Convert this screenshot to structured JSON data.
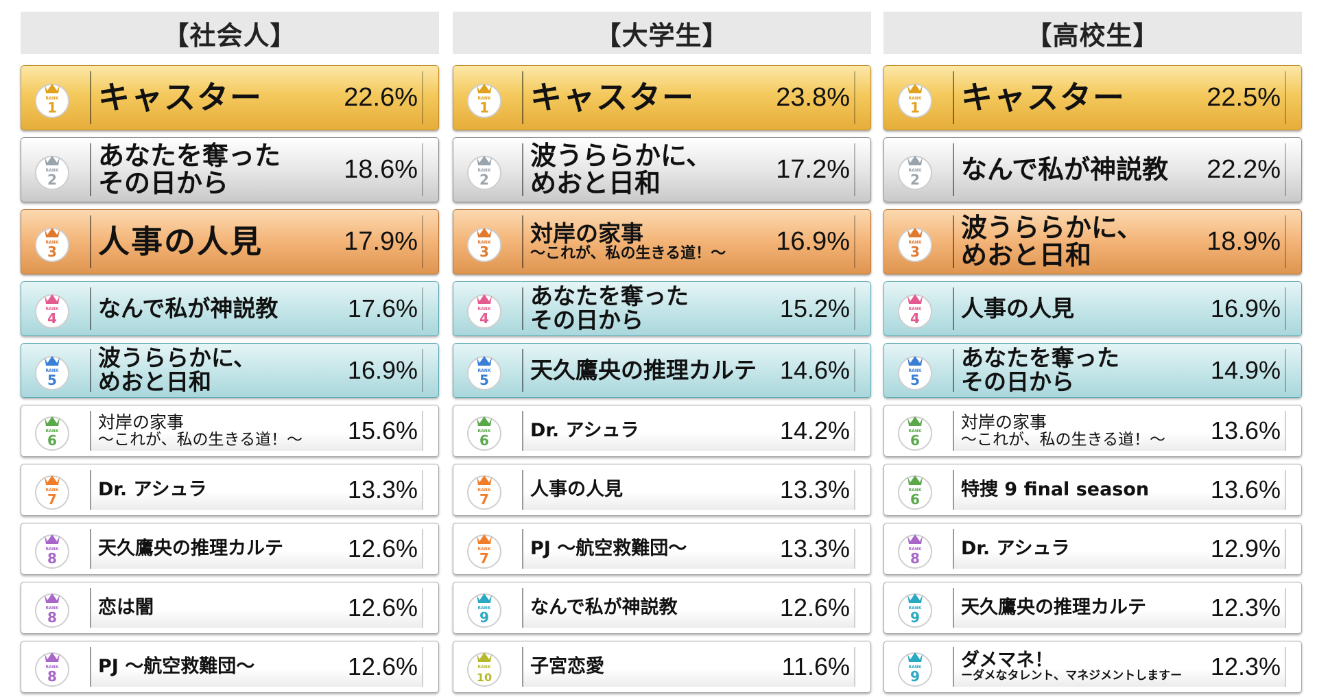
{
  "colors": {
    "gold": "#f4c95d",
    "silver": "#dcdcdc",
    "bronze": "#f3b477",
    "teal": "#c6e6e9",
    "plain": "#ffffff",
    "header_bg": "#e8e8e8"
  },
  "rank_badge_label": "RANK",
  "chart_data": {
    "type": "table",
    "columns": [
      {
        "header": "【社会人】",
        "rows": [
          {
            "rank": "1",
            "title": "キャスター",
            "sub": "",
            "value": 22.6,
            "pct": "22.6%",
            "tier": "gold",
            "size": "t-xl"
          },
          {
            "rank": "2",
            "title": "あなたを奪った\nその日から",
            "sub": "",
            "value": 18.6,
            "pct": "18.6%",
            "tier": "silver",
            "size": "t-l"
          },
          {
            "rank": "3",
            "title": "人事の人見",
            "sub": "",
            "value": 17.9,
            "pct": "17.9%",
            "tier": "bronze",
            "size": "t-xl"
          },
          {
            "rank": "4",
            "title": "なんで私が神説教",
            "sub": "",
            "value": 17.6,
            "pct": "17.6%",
            "tier": "teal",
            "size": "t-m"
          },
          {
            "rank": "5",
            "title": "波うららかに、\nめおと日和",
            "sub": "",
            "value": 16.9,
            "pct": "16.9%",
            "tier": "teal",
            "size": "t-m"
          },
          {
            "rank": "6",
            "title": "対岸の家事",
            "sub": "〜これが、私の生きる道！〜",
            "value": 15.6,
            "pct": "15.6%",
            "tier": "plain",
            "size": "t-xs"
          },
          {
            "rank": "7",
            "title": "Dr. アシュラ",
            "sub": "",
            "value": 13.3,
            "pct": "13.3%",
            "tier": "plain",
            "size": "t-s"
          },
          {
            "rank": "8",
            "title": "天久鷹央の推理カルテ",
            "sub": "",
            "value": 12.6,
            "pct": "12.6%",
            "tier": "plain",
            "size": "t-s"
          },
          {
            "rank": "8",
            "title": "恋は闇",
            "sub": "",
            "value": 12.6,
            "pct": "12.6%",
            "tier": "plain",
            "size": "t-s"
          },
          {
            "rank": "8",
            "title": "PJ 〜航空救難団〜",
            "sub": "",
            "value": 12.6,
            "pct": "12.6%",
            "tier": "plain",
            "size": "t-s"
          }
        ]
      },
      {
        "header": "【大学生】",
        "rows": [
          {
            "rank": "1",
            "title": "キャスター",
            "sub": "",
            "value": 23.8,
            "pct": "23.8%",
            "tier": "gold",
            "size": "t-xl"
          },
          {
            "rank": "2",
            "title": "波うららかに、\nめおと日和",
            "sub": "",
            "value": 17.2,
            "pct": "17.2%",
            "tier": "silver",
            "size": "t-l"
          },
          {
            "rank": "3",
            "title": "対岸の家事",
            "sub": "〜これが、私の生きる道！〜",
            "value": 16.9,
            "pct": "16.9%",
            "tier": "bronze",
            "size": "t-m"
          },
          {
            "rank": "4",
            "title": "あなたを奪った\nその日から",
            "sub": "",
            "value": 15.2,
            "pct": "15.2%",
            "tier": "teal",
            "size": "t-m"
          },
          {
            "rank": "5",
            "title": "天久鷹央の推理カルテ",
            "sub": "",
            "value": 14.6,
            "pct": "14.6%",
            "tier": "teal",
            "size": "t-m"
          },
          {
            "rank": "6",
            "title": "Dr. アシュラ",
            "sub": "",
            "value": 14.2,
            "pct": "14.2%",
            "tier": "plain",
            "size": "t-s"
          },
          {
            "rank": "7",
            "title": "人事の人見",
            "sub": "",
            "value": 13.3,
            "pct": "13.3%",
            "tier": "plain",
            "size": "t-s"
          },
          {
            "rank": "7",
            "title": "PJ 〜航空救難団〜",
            "sub": "",
            "value": 13.3,
            "pct": "13.3%",
            "tier": "plain",
            "size": "t-s"
          },
          {
            "rank": "9",
            "title": "なんで私が神説教",
            "sub": "",
            "value": 12.6,
            "pct": "12.6%",
            "tier": "plain",
            "size": "t-s"
          },
          {
            "rank": "10",
            "title": "子宮恋愛",
            "sub": "",
            "value": 11.6,
            "pct": "11.6%",
            "tier": "plain",
            "size": "t-s"
          }
        ]
      },
      {
        "header": "【高校生】",
        "rows": [
          {
            "rank": "1",
            "title": "キャスター",
            "sub": "",
            "value": 22.5,
            "pct": "22.5%",
            "tier": "gold",
            "size": "t-xl"
          },
          {
            "rank": "2",
            "title": "なんで私が神説教",
            "sub": "",
            "value": 22.2,
            "pct": "22.2%",
            "tier": "silver",
            "size": "t-l"
          },
          {
            "rank": "3",
            "title": "波うららかに、\nめおと日和",
            "sub": "",
            "value": 18.9,
            "pct": "18.9%",
            "tier": "bronze",
            "size": "t-l"
          },
          {
            "rank": "4",
            "title": "人事の人見",
            "sub": "",
            "value": 16.9,
            "pct": "16.9%",
            "tier": "teal",
            "size": "t-m"
          },
          {
            "rank": "5",
            "title": "あなたを奪った\nその日から",
            "sub": "",
            "value": 14.9,
            "pct": "14.9%",
            "tier": "teal",
            "size": "t-m"
          },
          {
            "rank": "6",
            "title": "対岸の家事",
            "sub": "〜これが、私の生きる道！〜",
            "value": 13.6,
            "pct": "13.6%",
            "tier": "plain",
            "size": "t-xs"
          },
          {
            "rank": "6",
            "title": "特捜 9 final season",
            "sub": "",
            "value": 13.6,
            "pct": "13.6%",
            "tier": "plain",
            "size": "t-s"
          },
          {
            "rank": "8",
            "title": "Dr. アシュラ",
            "sub": "",
            "value": 12.9,
            "pct": "12.9%",
            "tier": "plain",
            "size": "t-s"
          },
          {
            "rank": "9",
            "title": "天久鷹央の推理カルテ",
            "sub": "",
            "value": 12.3,
            "pct": "12.3%",
            "tier": "plain",
            "size": "t-s"
          },
          {
            "rank": "9",
            "title": "ダメマネ！",
            "sub": "ーダメなタレント、マネジメントしますー",
            "value": 12.3,
            "pct": "12.3%",
            "tier": "plain",
            "size": "t-s"
          }
        ]
      }
    ]
  }
}
